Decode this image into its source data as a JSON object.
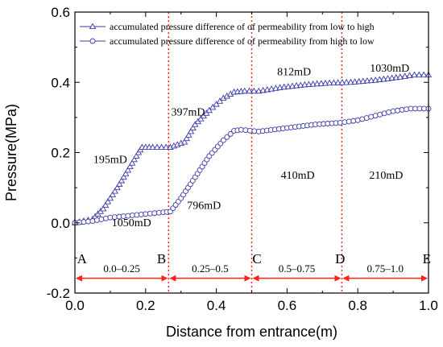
{
  "chart_data": {
    "type": "line",
    "xlabel": "Distance from entrance(m)",
    "ylabel": "Pressure(MPa)",
    "xlim": [
      0.0,
      1.0
    ],
    "ylim": [
      -0.2,
      0.6
    ],
    "x_ticks": [
      "0.0",
      "0.2",
      "0.4",
      "0.6",
      "0.8",
      "1.0"
    ],
    "y_ticks": [
      "-0.2",
      "0.0",
      "0.2",
      "0.4",
      "0.6"
    ],
    "grid": false,
    "legend_position": "top-left",
    "colors": {
      "series": "#3a3aa8",
      "divider": "#ff2020",
      "arrow": "#ff2020",
      "axis": "#000000"
    },
    "series": [
      {
        "name": "accumulated pressure difference of of permeability from low to high",
        "marker": "triangle",
        "x": [
          0.0,
          0.05,
          0.08,
          0.12,
          0.15,
          0.18,
          0.19,
          0.22,
          0.27,
          0.31,
          0.34,
          0.38,
          0.42,
          0.45,
          0.48,
          0.52,
          0.58,
          0.65,
          0.72,
          0.78,
          0.85,
          0.92,
          0.96,
          1.0
        ],
        "values": [
          0.0,
          0.01,
          0.04,
          0.1,
          0.15,
          0.2,
          0.215,
          0.215,
          0.215,
          0.23,
          0.28,
          0.32,
          0.355,
          0.372,
          0.375,
          0.375,
          0.385,
          0.393,
          0.398,
          0.4,
          0.406,
          0.415,
          0.421,
          0.421
        ]
      },
      {
        "name": "accumulated pressure difference of of  permeability from high to low",
        "marker": "circle",
        "x": [
          0.0,
          0.05,
          0.1,
          0.15,
          0.2,
          0.25,
          0.27,
          0.3,
          0.34,
          0.38,
          0.42,
          0.45,
          0.47,
          0.52,
          0.6,
          0.68,
          0.75,
          0.8,
          0.85,
          0.9,
          0.95,
          1.0
        ],
        "values": [
          0.0,
          0.005,
          0.015,
          0.02,
          0.025,
          0.03,
          0.032,
          0.07,
          0.13,
          0.19,
          0.235,
          0.262,
          0.265,
          0.26,
          0.27,
          0.28,
          0.285,
          0.292,
          0.305,
          0.318,
          0.325,
          0.325
        ]
      }
    ],
    "dividers_x": [
      0.265,
      0.5,
      0.755
    ],
    "annotations": [
      {
        "text": "195mD",
        "x": 0.1,
        "y": 0.17
      },
      {
        "text": "1050mD",
        "x": 0.16,
        "y": -0.01
      },
      {
        "text": "397mD",
        "x": 0.32,
        "y": 0.305
      },
      {
        "text": "796mD",
        "x": 0.365,
        "y": 0.04
      },
      {
        "text": "812mD",
        "x": 0.62,
        "y": 0.42
      },
      {
        "text": "410mD",
        "x": 0.63,
        "y": 0.125
      },
      {
        "text": "1030mD",
        "x": 0.89,
        "y": 0.43
      },
      {
        "text": "210mD",
        "x": 0.88,
        "y": 0.125
      }
    ],
    "points": [
      {
        "text": "A",
        "x": 0.02
      },
      {
        "text": "B",
        "x": 0.245
      },
      {
        "text": "C",
        "x": 0.515
      },
      {
        "text": "D",
        "x": 0.75
      },
      {
        "text": "E",
        "x": 0.995
      }
    ],
    "ranges": [
      {
        "text": "0.0–0.25",
        "from": 0.0,
        "to": 0.265
      },
      {
        "text": "0.25–0.5",
        "from": 0.265,
        "to": 0.5
      },
      {
        "text": "0.5–0.75",
        "from": 0.5,
        "to": 0.755
      },
      {
        "text": "0.75–1.0",
        "from": 0.755,
        "to": 1.0
      }
    ],
    "arrow_y": -0.158,
    "letters_y": -0.115,
    "range_text_y": -0.14
  }
}
